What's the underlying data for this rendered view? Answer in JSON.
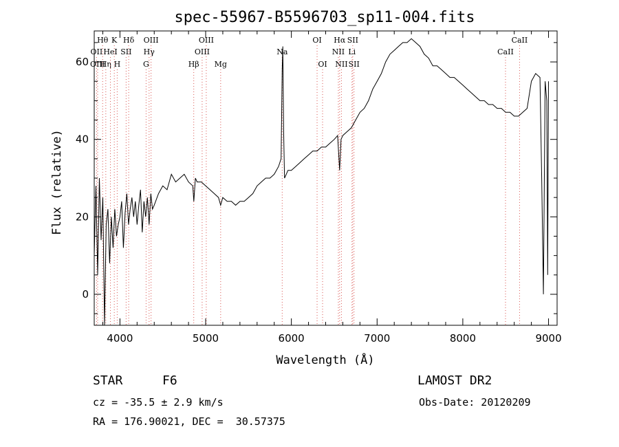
{
  "chart_data": {
    "type": "line",
    "title": "spec-55967-B5596703_sp11-004.fits",
    "xlabel": "Wavelength (Å)",
    "ylabel": "Flux (relative)",
    "xlim": [
      3700,
      9100
    ],
    "ylim": [
      -8,
      68
    ],
    "x_ticks": [
      4000,
      5000,
      6000,
      7000,
      8000,
      9000
    ],
    "y_ticks": [
      0,
      20,
      40,
      60
    ],
    "series": [
      {
        "x": [
          3700,
          3720,
          3740,
          3760,
          3780,
          3800,
          3820,
          3840,
          3860,
          3880,
          3900,
          3920,
          3940,
          3960,
          3980,
          4000,
          4020,
          4040,
          4060,
          4080,
          4100,
          4120,
          4140,
          4160,
          4180,
          4200,
          4220,
          4240,
          4260,
          4280,
          4300,
          4320,
          4340,
          4360,
          4380,
          4400,
          4450,
          4500,
          4550,
          4600,
          4650,
          4700,
          4750,
          4800,
          4850,
          4862,
          4880,
          4900,
          4950,
          5000,
          5050,
          5100,
          5150,
          5175,
          5200,
          5250,
          5300,
          5350,
          5400,
          5450,
          5500,
          5550,
          5600,
          5650,
          5700,
          5750,
          5800,
          5850,
          5880,
          5893,
          5900,
          5910,
          5920,
          5940,
          5960,
          6000,
          6050,
          6100,
          6150,
          6200,
          6250,
          6300,
          6350,
          6400,
          6450,
          6500,
          6540,
          6563,
          6580,
          6600,
          6650,
          6700,
          6750,
          6800,
          6850,
          6900,
          6950,
          7000,
          7050,
          7100,
          7150,
          7200,
          7250,
          7300,
          7350,
          7400,
          7450,
          7500,
          7550,
          7600,
          7650,
          7700,
          7750,
          7800,
          7850,
          7900,
          7950,
          8000,
          8050,
          8100,
          8150,
          8200,
          8250,
          8300,
          8350,
          8400,
          8450,
          8500,
          8550,
          8600,
          8650,
          8700,
          8750,
          8800,
          8850,
          8900,
          8920,
          8940,
          8960,
          8980,
          8990,
          9000
        ],
        "y": [
          10,
          28,
          5,
          30,
          14,
          25,
          -8,
          18,
          22,
          8,
          20,
          12,
          22,
          15,
          18,
          20,
          24,
          12,
          21,
          26,
          18,
          22,
          25,
          20,
          24,
          18,
          23,
          27,
          16,
          24,
          20,
          25,
          18,
          26,
          22,
          23,
          26,
          28,
          27,
          31,
          29,
          30,
          31,
          29,
          28,
          24,
          30,
          29,
          29,
          28,
          27,
          26,
          25,
          23,
          25,
          24,
          24,
          23,
          24,
          24,
          25,
          26,
          28,
          29,
          30,
          30,
          31,
          33,
          35,
          58,
          64,
          42,
          30,
          31,
          32,
          32,
          33,
          34,
          35,
          36,
          37,
          37,
          38,
          38,
          39,
          40,
          41,
          32,
          40,
          41,
          42,
          43,
          45,
          47,
          48,
          50,
          53,
          55,
          57,
          60,
          62,
          63,
          64,
          65,
          65,
          66,
          65,
          64,
          62,
          61,
          59,
          59,
          58,
          57,
          56,
          56,
          55,
          54,
          53,
          52,
          51,
          50,
          50,
          49,
          49,
          48,
          48,
          47,
          47,
          46,
          46,
          47,
          48,
          55,
          57,
          56,
          30,
          0,
          55,
          50,
          5,
          55
        ]
      }
    ],
    "line_markers": [
      {
        "label": "Hθ",
        "wl": 3798,
        "row": 1
      },
      {
        "label": "OII",
        "wl": 3727,
        "row": 2
      },
      {
        "label": "OIII",
        "wl": 3740,
        "row": 3
      },
      {
        "label": "Hη",
        "wl": 3835,
        "row": 3
      },
      {
        "label": "K",
        "wl": 3934,
        "row": 1
      },
      {
        "label": "HeI",
        "wl": 3889,
        "row": 2
      },
      {
        "label": "SII",
        "wl": 4072,
        "row": 2
      },
      {
        "label": "H",
        "wl": 3968,
        "row": 3
      },
      {
        "label": "Hδ",
        "wl": 4102,
        "row": 1
      },
      {
        "label": "OIII",
        "wl": 4363,
        "row": 1
      },
      {
        "label": "Hγ",
        "wl": 4340,
        "row": 2
      },
      {
        "label": "G",
        "wl": 4305,
        "row": 3
      },
      {
        "label": "OIII",
        "wl": 5007,
        "row": 1
      },
      {
        "label": "OIII",
        "wl": 4959,
        "row": 2
      },
      {
        "label": "Hβ",
        "wl": 4861,
        "row": 3
      },
      {
        "label": "Mg",
        "wl": 5175,
        "row": 3
      },
      {
        "label": "Na",
        "wl": 5893,
        "row": 2
      },
      {
        "label": "OI",
        "wl": 6300,
        "row": 1
      },
      {
        "label": "OI",
        "wl": 6364,
        "row": 3
      },
      {
        "label": "Hα",
        "wl": 6563,
        "row": 1
      },
      {
        "label": "SII",
        "wl": 6716,
        "row": 1
      },
      {
        "label": "NII",
        "wl": 6548,
        "row": 2
      },
      {
        "label": "Li",
        "wl": 6707,
        "row": 2
      },
      {
        "label": "NII",
        "wl": 6584,
        "row": 3
      },
      {
        "label": "SII",
        "wl": 6731,
        "row": 3
      },
      {
        "label": "CaII",
        "wl": 8662,
        "row": 1
      },
      {
        "label": "CaII",
        "wl": 8498,
        "row": 2
      }
    ]
  },
  "info": {
    "object_class": "STAR",
    "subclass": "F6",
    "survey": "LAMOST DR2",
    "redshift": "cz = -35.5 ± 2.9 km/s",
    "obs_date": "Obs-Date: 20120209",
    "coords": "RA = 176.90021, DEC =  30.57375"
  },
  "colors": {
    "marker_line": "#d9534f",
    "spectrum": "#000000"
  }
}
